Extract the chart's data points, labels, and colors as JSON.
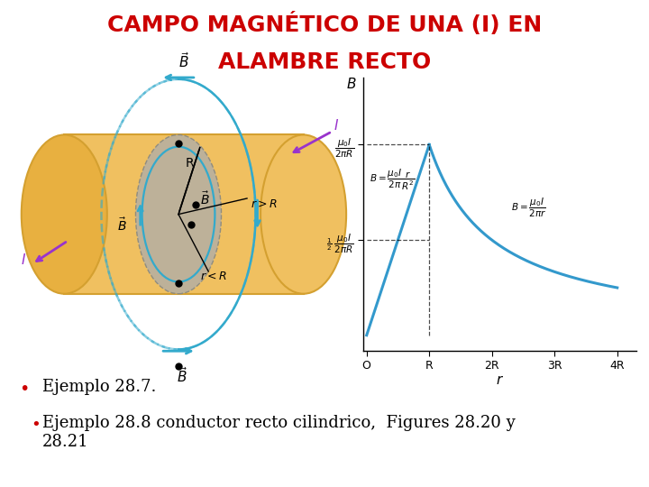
{
  "title_line1": "CAMPO MAGNÉTICO DE UNA (I) EN",
  "title_line2": "ALAMBRE RECTO",
  "title_color": "#cc0000",
  "title_fontsize": 18,
  "title_fontweight": "bold",
  "bg_color": "#ffffff",
  "bullet1": "Ejemplo 28.7.",
  "bullet2": "Ejemplo 28.8 conductor recto cilindrico,  Figures 28.20 y\n28.21",
  "bullet_fontsize": 13,
  "bullet_color": "#000000",
  "bullet_marker_color": "#cc0000",
  "graph_line_color": "#3399cc",
  "cylinder_color": "#f0c060",
  "cylinder_dark": "#d4a030",
  "cylinder_end_color": "#e8b040",
  "cross_section_color": "#b8b0a0",
  "loop_color": "#33aacc",
  "arrow_color": "#9933cc",
  "label_color": "#000000",
  "dot_color": "#000000"
}
